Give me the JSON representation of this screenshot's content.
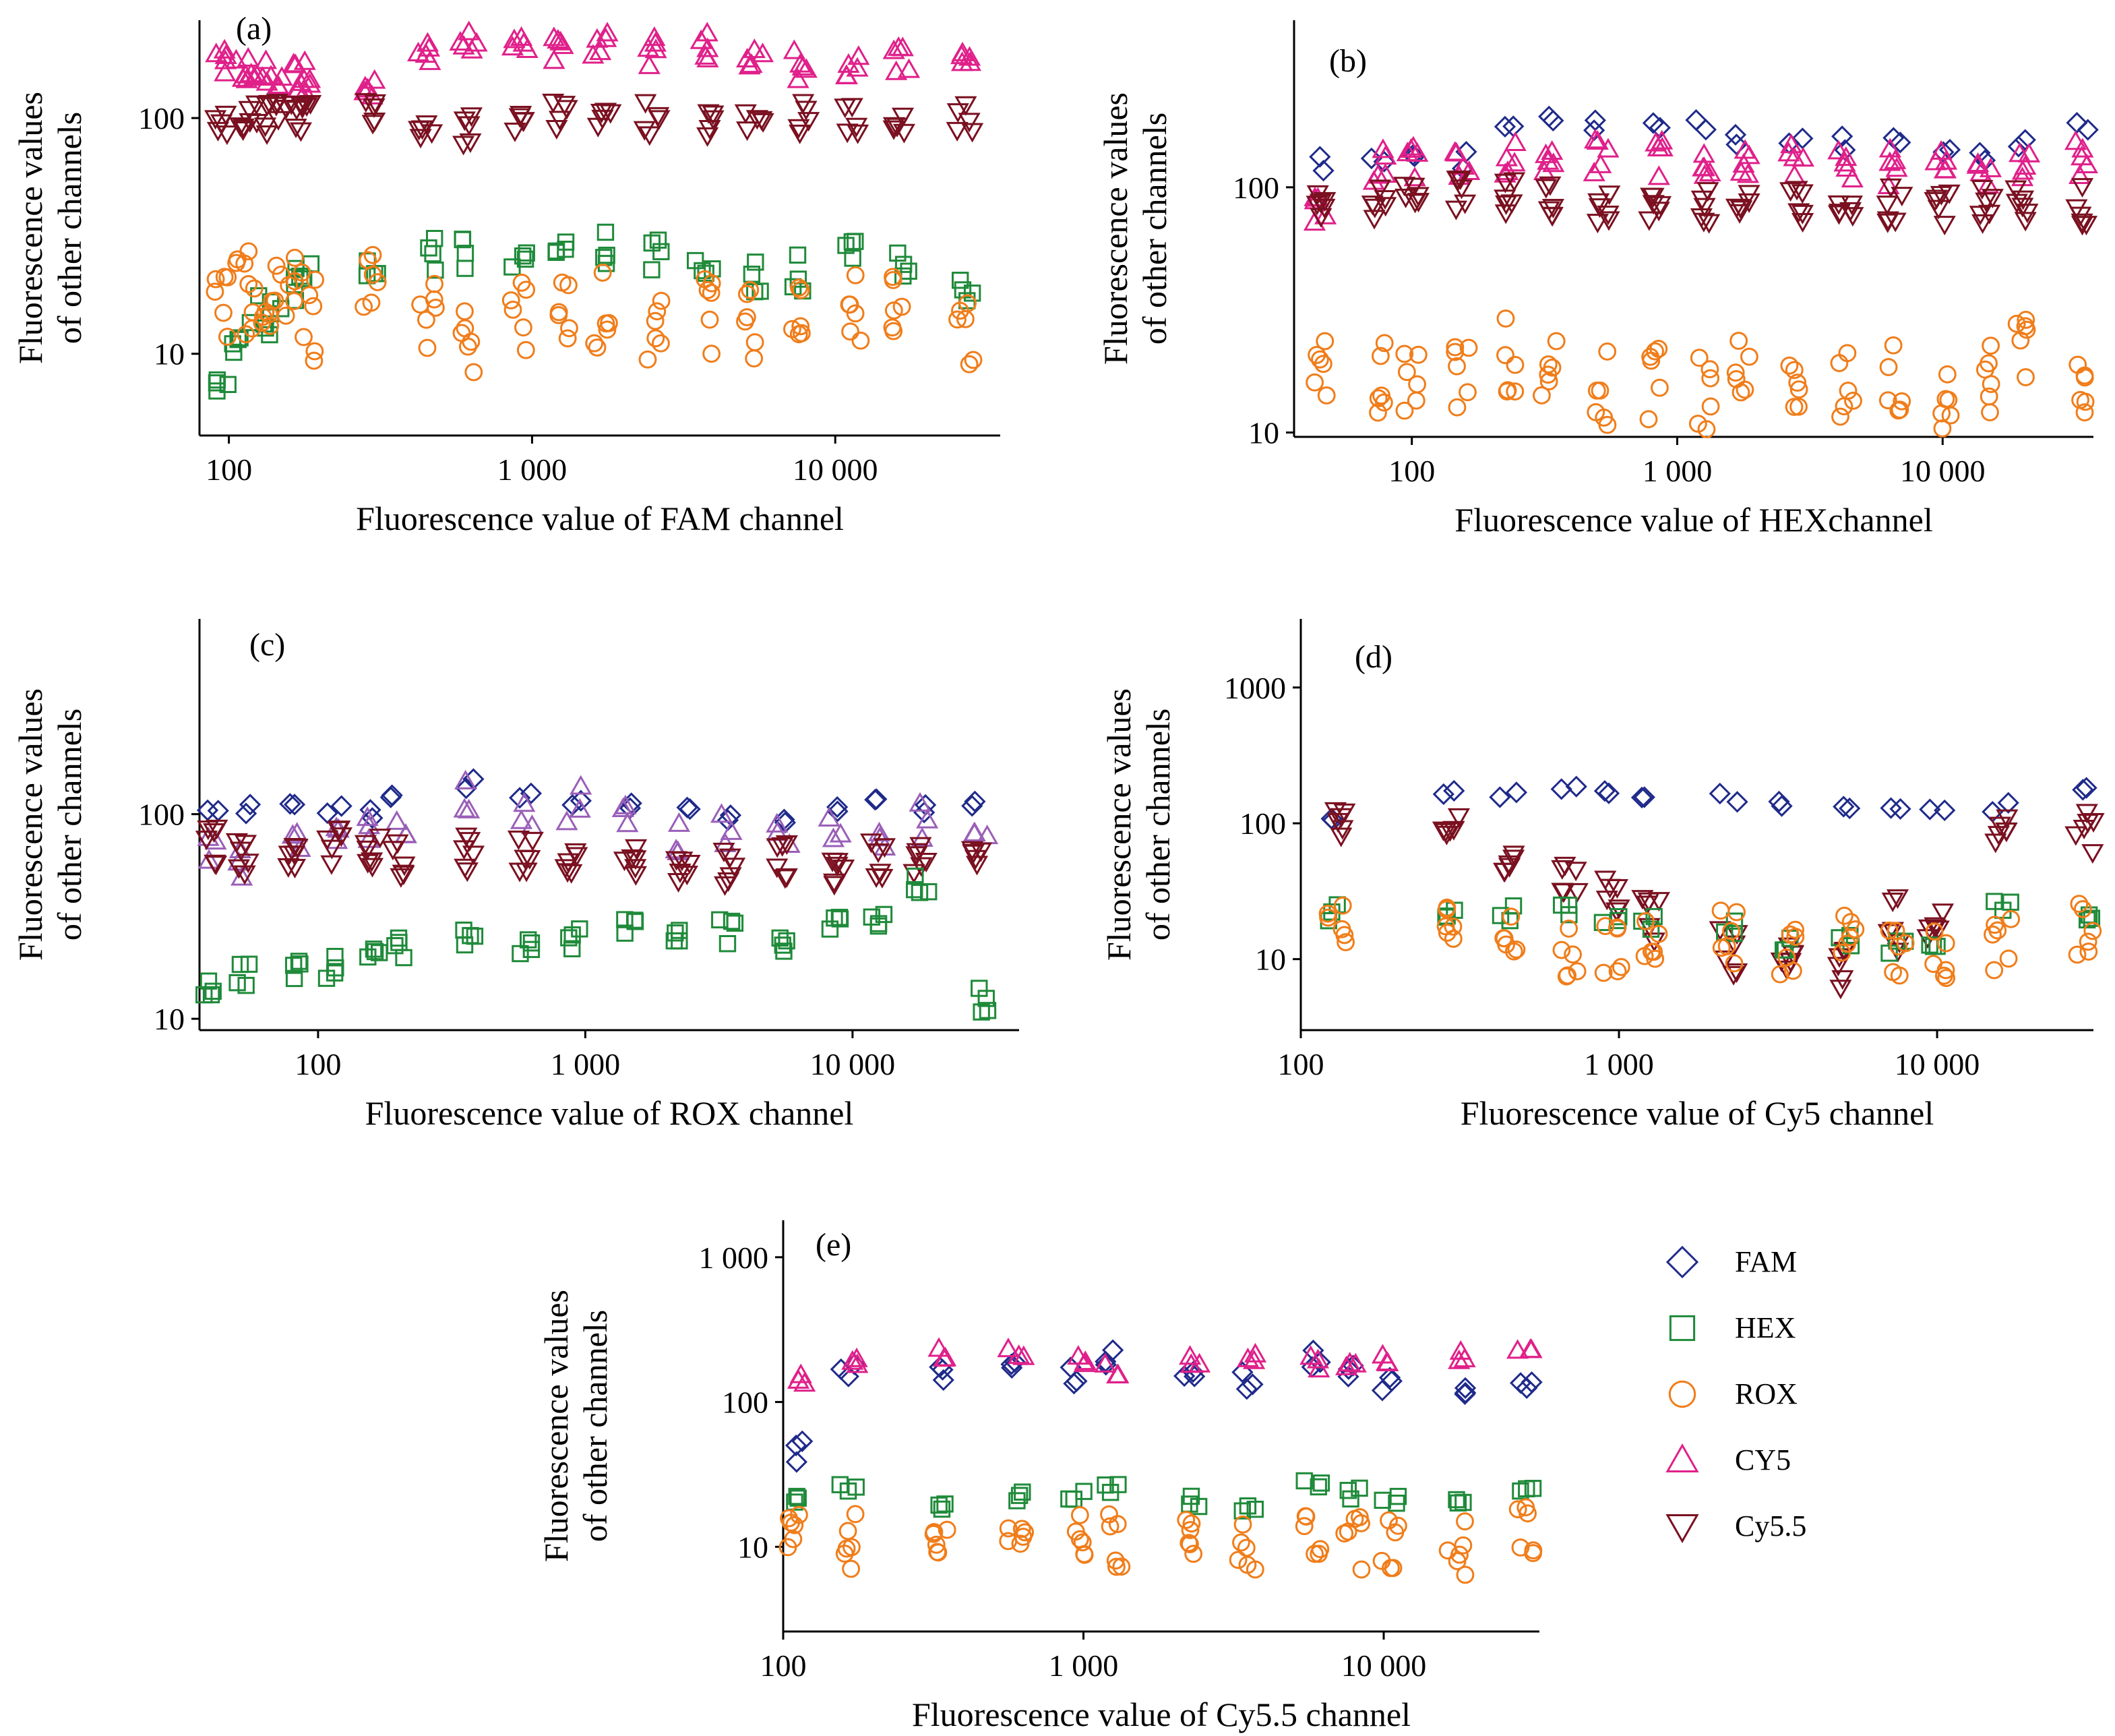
{
  "colors": {
    "FAM": "#1f2a8a",
    "HEX": "#1f8a3a",
    "ROX": "#f07d1a",
    "CY5": "#e0208a",
    "Cy5.5": "#7a1020",
    "ROXpanel_CY5": "#9a5fb8"
  },
  "legend": [
    {
      "key": "FAM",
      "label": "FAM",
      "marker": "diamond"
    },
    {
      "key": "HEX",
      "label": "HEX",
      "marker": "square"
    },
    {
      "key": "ROX",
      "label": "ROX",
      "marker": "circle"
    },
    {
      "key": "CY5",
      "label": "CY5",
      "marker": "triangle-up"
    },
    {
      "key": "Cy5.5",
      "label": "Cy5.5",
      "marker": "triangle-down"
    }
  ],
  "chart_data": [
    {
      "panel": "(a)",
      "type": "scatter",
      "xlabel": "Fluorescence value of FAM channel",
      "ylabel": [
        "Fluorescence values",
        "of other channels"
      ],
      "xscale": "log",
      "yscale": "log",
      "xlim": [
        80,
        35000
      ],
      "ylim": [
        4.5,
        260
      ],
      "xticks": [
        {
          "v": 100,
          "label": "100"
        },
        {
          "v": 1000,
          "label": "1 000"
        },
        {
          "v": 10000,
          "label": "10 000"
        }
      ],
      "yticks": [
        {
          "v": 10,
          "label": "10"
        },
        {
          "v": 100,
          "label": "100"
        }
      ],
      "x": [
        95,
        110,
        125,
        140,
        165,
        180,
        290,
        450,
        620,
        900,
        1250,
        1700,
        2500,
        3700,
        5400,
        7700,
        11500,
        16500,
        27000
      ],
      "series": [
        {
          "key": "CY5",
          "y": [
            165,
            160,
            155,
            150,
            150,
            150,
            145,
            185,
            200,
            195,
            190,
            195,
            195,
            200,
            175,
            170,
            170,
            170,
            170
          ],
          "spread": 0.07,
          "n": 5
        },
        {
          "key": "Cy5.5",
          "y": [
            100,
            95,
            100,
            100,
            105,
            100,
            105,
            95,
            90,
            100,
            100,
            100,
            100,
            95,
            100,
            100,
            100,
            100,
            100
          ],
          "spread": 0.07,
          "n": 5
        },
        {
          "key": "HEX",
          "y": [
            7,
            12,
            15,
            14,
            20,
            21,
            22,
            26,
            27,
            28,
            28,
            28,
            27,
            26,
            22,
            22,
            26,
            24,
            20
          ],
          "spread": 0.08,
          "n": 4
        },
        {
          "key": "ROX",
          "y": [
            16,
            18,
            17,
            18,
            17,
            14,
            18,
            14,
            12,
            15,
            16,
            15,
            14,
            15,
            14,
            16,
            15,
            15,
            13
          ],
          "spread": 0.18,
          "n": 6
        }
      ]
    },
    {
      "panel": "(b)",
      "type": "scatter",
      "xlabel": "Fluorescence value of HEXchannel",
      "ylabel": [
        "Fluorescence values",
        "of other channels"
      ],
      "xscale": "log",
      "yscale": "log",
      "xlim": [
        36,
        37000
      ],
      "ylim": [
        9.6,
        480
      ],
      "xticks": [
        {
          "v": 100,
          "label": "100"
        },
        {
          "v": 1000,
          "label": "1 000"
        },
        {
          "v": 10000,
          "label": "10 000"
        }
      ],
      "yticks": [
        {
          "v": 10,
          "label": "10"
        },
        {
          "v": 100,
          "label": "100"
        }
      ],
      "x": [
        45,
        75,
        100,
        155,
        240,
        330,
        520,
        820,
        1250,
        1750,
        2800,
        4300,
        6600,
        10000,
        14500,
        20000,
        33000
      ],
      "series": [
        {
          "key": "FAM",
          "y": [
            125,
            135,
            130,
            130,
            190,
            205,
            185,
            175,
            180,
            155,
            165,
            150,
            155,
            145,
            140,
            145,
            175
          ],
          "spread": 0.04,
          "n": 2
        },
        {
          "key": "CY5",
          "y": [
            85,
            120,
            130,
            125,
            130,
            135,
            135,
            130,
            130,
            120,
            125,
            125,
            120,
            120,
            120,
            120,
            130
          ],
          "spread": 0.08,
          "n": 5
        },
        {
          "key": "Cy5.5",
          "y": [
            85,
            90,
            90,
            95,
            90,
            90,
            80,
            85,
            85,
            85,
            85,
            85,
            85,
            85,
            85,
            85,
            85
          ],
          "spread": 0.08,
          "n": 6
        },
        {
          "key": "ROX",
          "y": [
            17,
            17,
            17,
            18,
            21,
            18,
            15,
            16,
            14,
            17,
            17,
            15,
            17,
            15,
            17,
            24,
            14
          ],
          "spread": 0.16,
          "n": 6
        }
      ]
    },
    {
      "panel": "(c)",
      "type": "scatter",
      "xlabel": "Fluorescence value of ROX channel",
      "ylabel": [
        "Fluorescence values",
        "of other channels"
      ],
      "xscale": "log",
      "yscale": "log",
      "xlim": [
        36,
        42000
      ],
      "ylim": [
        8.8,
        900
      ],
      "xticks": [
        {
          "v": 100,
          "label": "100"
        },
        {
          "v": 1000,
          "label": "1 000"
        },
        {
          "v": 10000,
          "label": "10 000"
        }
      ],
      "yticks": [
        {
          "v": 10,
          "label": "10"
        },
        {
          "v": 100,
          "label": "100"
        }
      ],
      "x": [
        40,
        52,
        80,
        115,
        160,
        200,
        370,
        600,
        900,
        1450,
        2300,
        3400,
        5500,
        8700,
        12500,
        18000,
        30000
      ],
      "series": [
        {
          "key": "FAM",
          "y": [
            110,
            110,
            105,
            105,
            100,
            125,
            140,
            120,
            120,
            110,
            100,
            95,
            95,
            105,
            110,
            105,
            120
          ],
          "spread": 0.04,
          "n": 2
        },
        {
          "key": "ROXpanel_CY5",
          "y": [
            70,
            55,
            85,
            90,
            85,
            85,
            125,
            95,
            115,
            95,
            80,
            85,
            75,
            85,
            85,
            95,
            95
          ],
          "spread": 0.1,
          "n": 3
        },
        {
          "key": "Cy5.5",
          "y": [
            70,
            60,
            65,
            70,
            65,
            60,
            65,
            65,
            55,
            60,
            55,
            55,
            60,
            55,
            60,
            60,
            65
          ],
          "spread": 0.09,
          "n": 6
        },
        {
          "key": "HEX",
          "y": [
            14,
            16,
            17,
            18,
            19,
            23,
            25,
            22,
            25,
            27,
            24,
            27,
            25,
            31,
            30,
            45,
            12
          ],
          "spread": 0.07,
          "n": 4
        }
      ]
    },
    {
      "panel": "(d)",
      "type": "scatter",
      "xlabel": "Fluorescence value of Cy5 channel",
      "ylabel": [
        "Fluorescence values",
        "of other channels"
      ],
      "xscale": "log",
      "yscale": "log",
      "xlim": [
        100,
        31000
      ],
      "ylim": [
        3,
        3200
      ],
      "xticks": [
        {
          "v": 100,
          "label": "100"
        },
        {
          "v": 1000,
          "label": "1 000"
        },
        {
          "v": 10000,
          "label": "10 000"
        }
      ],
      "yticks": [
        {
          "v": 10,
          "label": "10"
        },
        {
          "v": 100,
          "label": "100"
        },
        {
          "v": 1000,
          "label": "1000"
        }
      ],
      "x": [
        130,
        300,
        450,
        700,
        950,
        1250,
        2200,
        3400,
        5200,
        7500,
        10000,
        16000,
        29000
      ],
      "series": [
        {
          "key": "FAM",
          "y": [
            110,
            160,
            165,
            180,
            165,
            145,
            155,
            140,
            130,
            130,
            120,
            130,
            170
          ],
          "spread": 0.04,
          "n": 2
        },
        {
          "key": "Cy5.5",
          "y": [
            105,
            80,
            65,
            45,
            35,
            20,
            12,
            8,
            9,
            18,
            15,
            70,
            80
          ],
          "spread": 0.2,
          "n": 6
        },
        {
          "key": "HEX",
          "y": [
            22,
            22,
            22,
            22,
            21,
            18,
            17,
            13,
            13,
            12,
            12,
            24,
            22
          ],
          "spread": 0.06,
          "n": 3
        },
        {
          "key": "ROX",
          "y": [
            16,
            15,
            14,
            12,
            13,
            16,
            14,
            12,
            13,
            12,
            12,
            12,
            16
          ],
          "spread": 0.22,
          "n": 6
        }
      ]
    },
    {
      "panel": "(e)",
      "type": "scatter",
      "xlabel": "Fluorescence value of Cy5.5 channel",
      "ylabel": [
        "Fluorescence values",
        "of other channels"
      ],
      "xscale": "log",
      "yscale": "log",
      "xlim": [
        100,
        33000
      ],
      "ylim": [
        2.6,
        1800
      ],
      "xticks": [
        {
          "v": 100,
          "label": "100"
        },
        {
          "v": 1000,
          "label": "1 000"
        },
        {
          "v": 10000,
          "label": "10 000"
        }
      ],
      "yticks": [
        {
          "v": 10,
          "label": "10"
        },
        {
          "v": 100,
          "label": "100"
        },
        {
          "v": 1000,
          "label": "1 000"
        }
      ],
      "x": [
        110,
        165,
        330,
        600,
        950,
        1250,
        2300,
        3500,
        5800,
        7900,
        10500,
        17500,
        29500
      ],
      "series": [
        {
          "key": "FAM",
          "y": [
            45,
            165,
            150,
            160,
            145,
            190,
            140,
            135,
            200,
            150,
            125,
            125,
            150
          ],
          "spread": 0.08,
          "n": 3
        },
        {
          "key": "CY5",
          "y": [
            140,
            180,
            210,
            210,
            195,
            170,
            200,
            210,
            190,
            195,
            200,
            215,
            205
          ],
          "spread": 0.06,
          "n": 3
        },
        {
          "key": "HEX",
          "y": [
            22,
            25,
            20,
            22,
            22,
            26,
            20,
            18,
            26,
            23,
            20,
            22,
            23
          ],
          "spread": 0.05,
          "n": 3
        },
        {
          "key": "ROX",
          "y": [
            14,
            11,
            9,
            11,
            13,
            11,
            12,
            10,
            11,
            11,
            10,
            10,
            13
          ],
          "spread": 0.2,
          "n": 6
        }
      ]
    }
  ]
}
